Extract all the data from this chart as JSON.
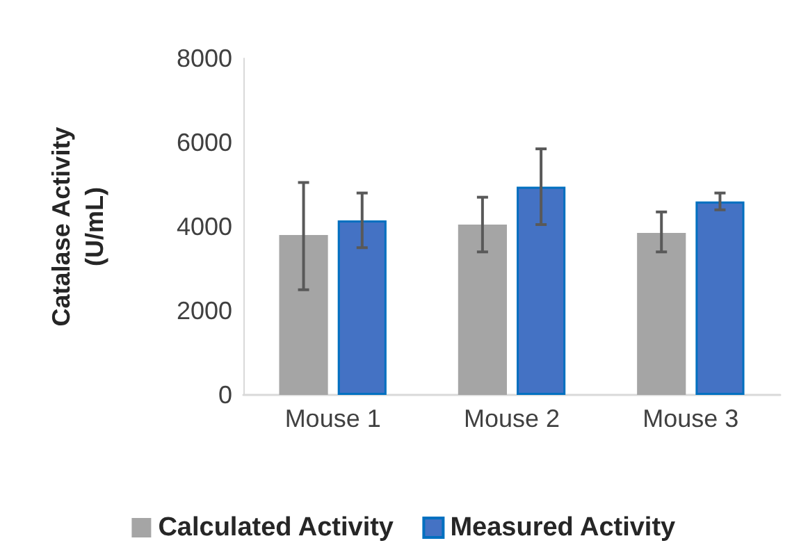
{
  "chart_data": {
    "type": "bar",
    "ylabel": "Catalase Activity\n(U/mL)",
    "categories": [
      "Mouse 1",
      "Mouse 2",
      "Mouse 3"
    ],
    "series": [
      {
        "name": "Calculated Activity",
        "color": "#a5a5a5",
        "values": [
          3800,
          4050,
          3850
        ],
        "errors": [
          [
            2500,
            5050
          ],
          [
            3400,
            4700
          ],
          [
            3400,
            4350
          ]
        ]
      },
      {
        "name": "Measured Activity",
        "color": "#4472c4",
        "values": [
          4150,
          4950,
          4600
        ],
        "errors": [
          [
            3500,
            4800
          ],
          [
            4050,
            5850
          ],
          [
            4400,
            4800
          ]
        ]
      }
    ],
    "ylim": [
      0,
      8000
    ],
    "yticks": [
      0,
      2000,
      4000,
      6000,
      8000
    ],
    "grid": false,
    "legend": "bottom"
  }
}
